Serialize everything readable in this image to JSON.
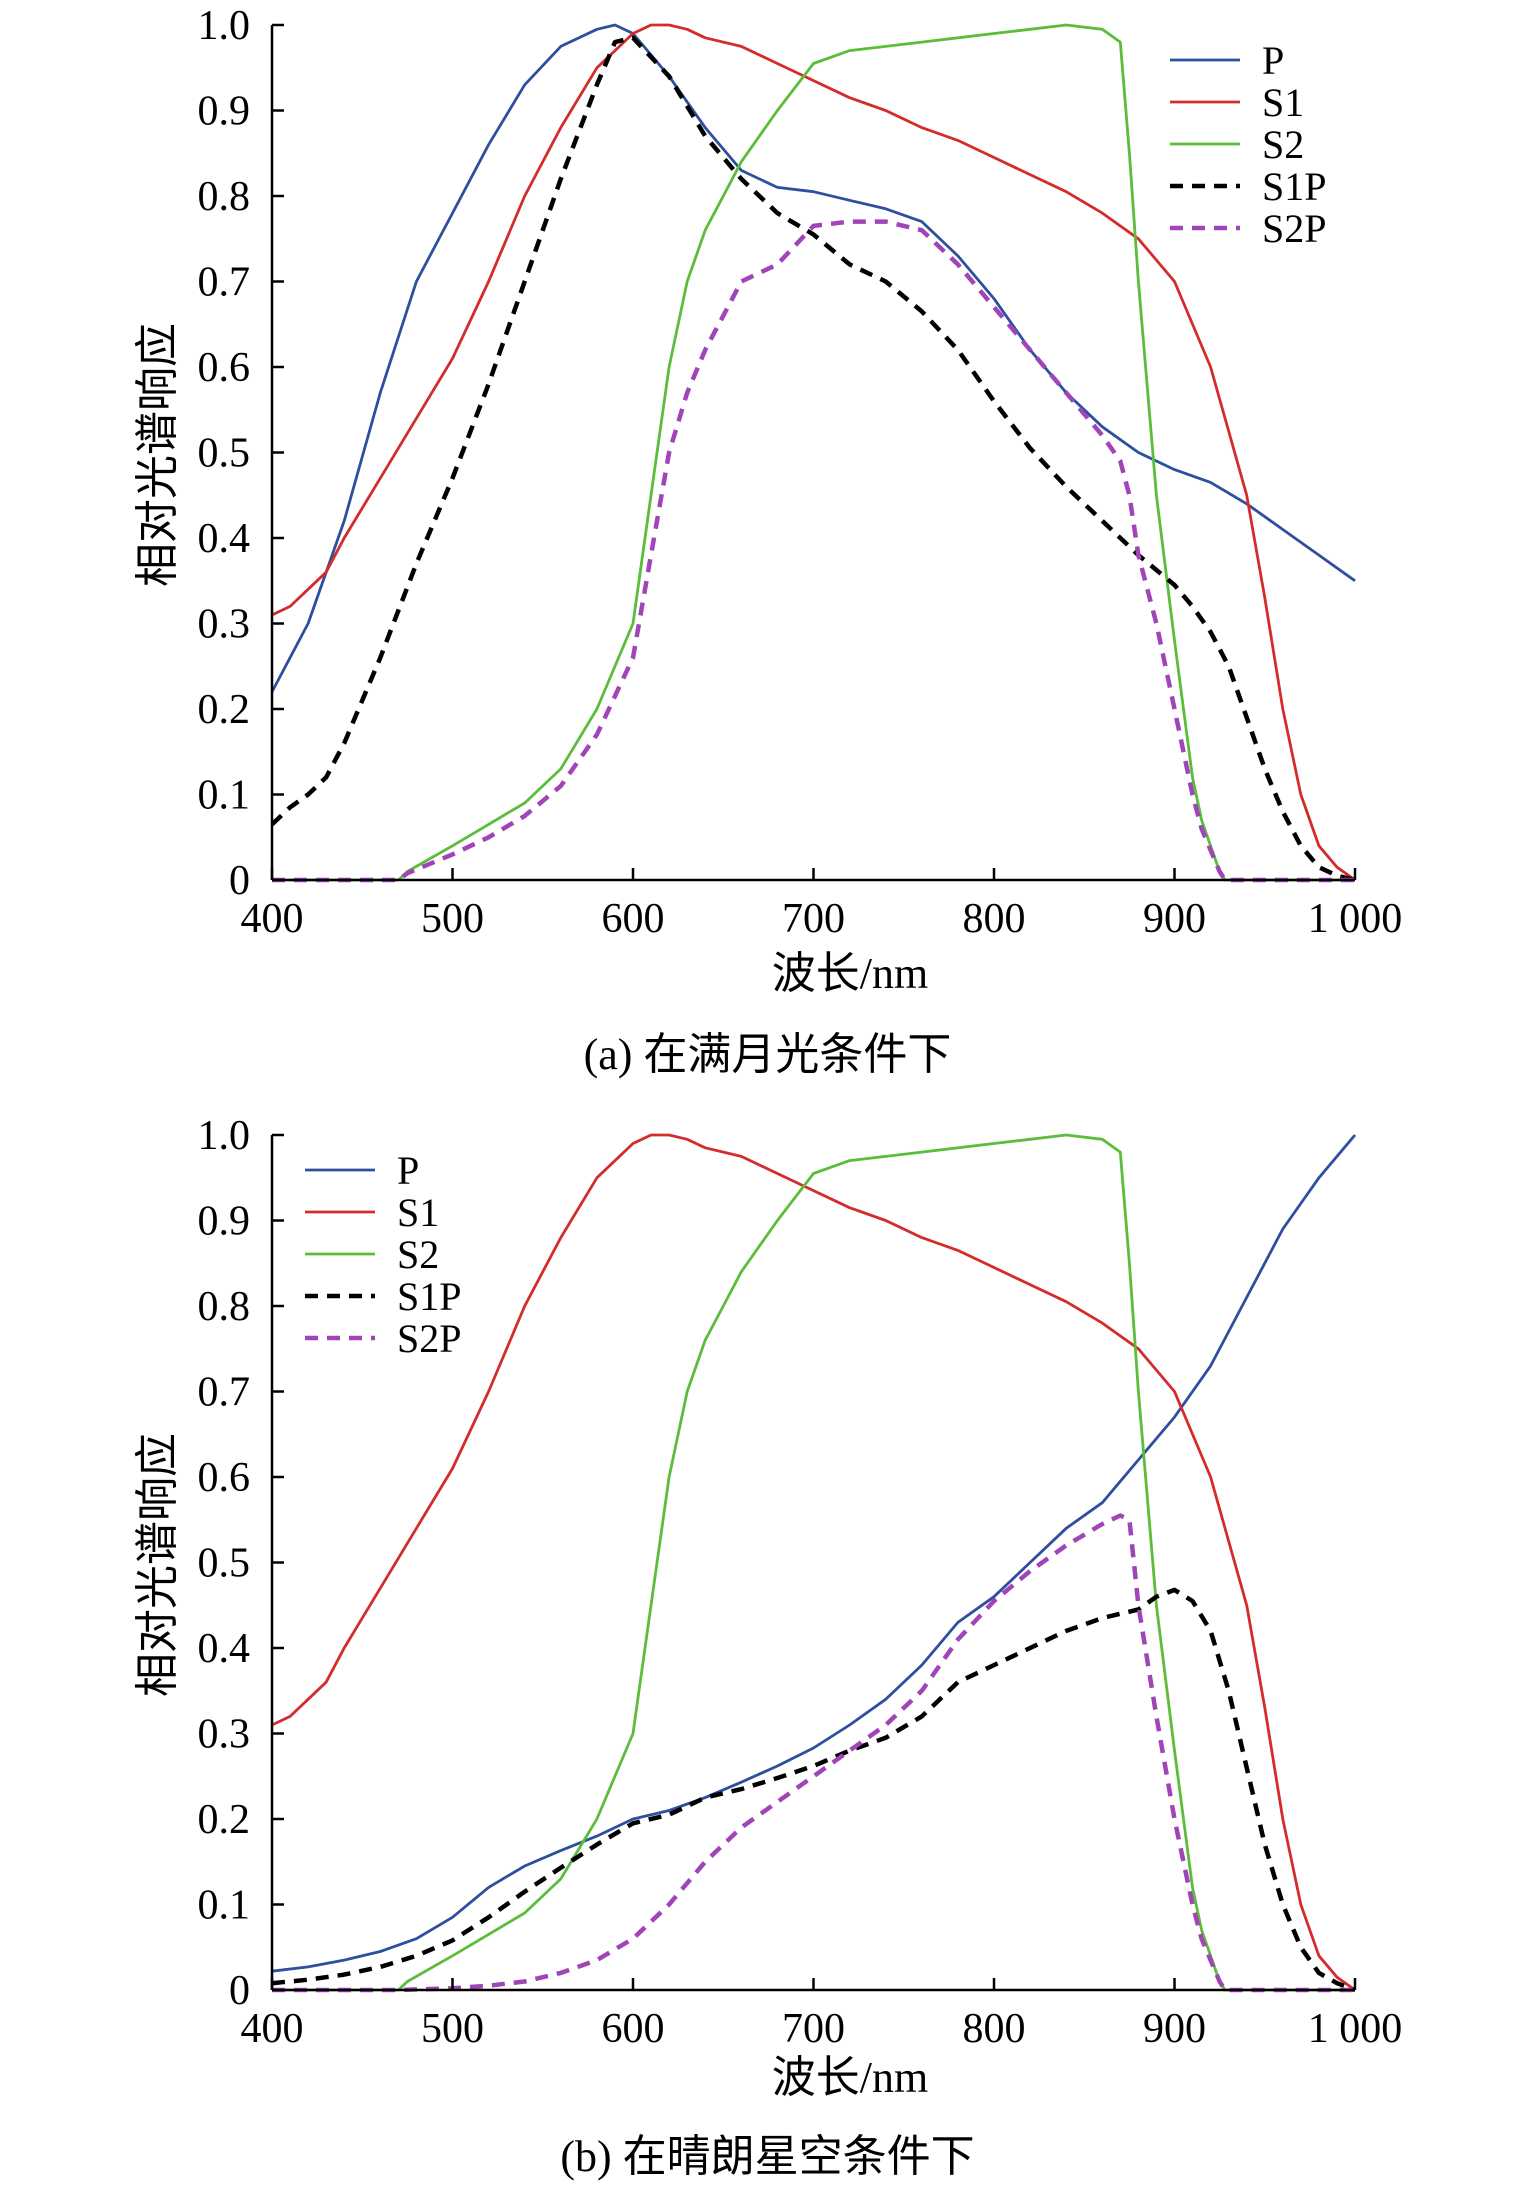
{
  "chart_data": [
    {
      "type": "line",
      "caption": "(a) 在满月光条件下",
      "xlabel": "波长/nm",
      "ylabel": "相对光谱响应",
      "xlim": [
        400,
        1000
      ],
      "ylim": [
        0,
        1.0
      ],
      "xticks": [
        400,
        500,
        600,
        700,
        800,
        900,
        1000
      ],
      "xtick_labels": [
        "400",
        "500",
        "600",
        "700",
        "800",
        "900",
        "1 000"
      ],
      "yticks": [
        0,
        0.1,
        0.2,
        0.3,
        0.4,
        0.5,
        0.6,
        0.7,
        0.8,
        0.9,
        1.0
      ],
      "ytick_labels": [
        "0",
        "0.1",
        "0.2",
        "0.3",
        "0.4",
        "0.5",
        "0.6",
        "0.7",
        "0.8",
        "0.9",
        "1.0"
      ],
      "grid": false,
      "legend": "top-right",
      "series": [
        {
          "name": "P",
          "color": "#2e4f9e",
          "dash": false,
          "x": [
            400,
            420,
            440,
            460,
            480,
            500,
            520,
            540,
            560,
            580,
            590,
            600,
            620,
            640,
            660,
            680,
            700,
            720,
            740,
            760,
            780,
            800,
            820,
            840,
            860,
            880,
            900,
            920,
            940,
            960,
            980,
            1000
          ],
          "y": [
            0.22,
            0.3,
            0.42,
            0.57,
            0.7,
            0.78,
            0.86,
            0.93,
            0.975,
            0.995,
            1.0,
            0.99,
            0.94,
            0.88,
            0.83,
            0.81,
            0.805,
            0.795,
            0.785,
            0.77,
            0.73,
            0.68,
            0.62,
            0.57,
            0.53,
            0.5,
            0.48,
            0.465,
            0.44,
            0.41,
            0.38,
            0.35
          ]
        },
        {
          "name": "S1",
          "color": "#d42b2b",
          "dash": false,
          "x": [
            400,
            410,
            420,
            430,
            440,
            460,
            480,
            500,
            520,
            540,
            560,
            580,
            600,
            610,
            620,
            630,
            640,
            660,
            680,
            700,
            720,
            740,
            760,
            780,
            800,
            820,
            840,
            860,
            880,
            900,
            920,
            940,
            950,
            960,
            970,
            980,
            990,
            1000
          ],
          "y": [
            0.31,
            0.32,
            0.34,
            0.36,
            0.4,
            0.47,
            0.54,
            0.61,
            0.7,
            0.8,
            0.88,
            0.95,
            0.99,
            1.0,
            1.0,
            0.995,
            0.985,
            0.975,
            0.955,
            0.935,
            0.915,
            0.9,
            0.88,
            0.865,
            0.845,
            0.825,
            0.805,
            0.78,
            0.75,
            0.7,
            0.6,
            0.45,
            0.33,
            0.2,
            0.1,
            0.04,
            0.015,
            0.0
          ]
        },
        {
          "name": "S2",
          "color": "#5cbc3b",
          "dash": false,
          "x": [
            400,
            470,
            475,
            500,
            520,
            540,
            560,
            580,
            600,
            610,
            620,
            630,
            640,
            650,
            660,
            680,
            700,
            720,
            740,
            760,
            780,
            800,
            820,
            840,
            860,
            870,
            875,
            880,
            890,
            900,
            905,
            910,
            915,
            920,
            925,
            928,
            930,
            1000
          ],
          "y": [
            0,
            0,
            0.01,
            0.04,
            0.065,
            0.09,
            0.13,
            0.2,
            0.3,
            0.45,
            0.6,
            0.7,
            0.76,
            0.8,
            0.84,
            0.9,
            0.955,
            0.97,
            0.975,
            0.98,
            0.985,
            0.99,
            0.995,
            1.0,
            0.995,
            0.98,
            0.85,
            0.7,
            0.45,
            0.28,
            0.2,
            0.12,
            0.07,
            0.04,
            0.01,
            0.0,
            0,
            0
          ]
        },
        {
          "name": "S1P",
          "color": "#000000",
          "dash": true,
          "x": [
            400,
            410,
            420,
            430,
            440,
            460,
            480,
            500,
            520,
            540,
            560,
            580,
            590,
            600,
            620,
            640,
            660,
            680,
            700,
            720,
            740,
            760,
            780,
            800,
            820,
            840,
            860,
            880,
            900,
            910,
            920,
            930,
            940,
            950,
            960,
            970,
            980,
            990,
            1000
          ],
          "y": [
            0.065,
            0.085,
            0.1,
            0.12,
            0.16,
            0.26,
            0.37,
            0.47,
            0.58,
            0.7,
            0.82,
            0.93,
            0.98,
            0.985,
            0.94,
            0.87,
            0.82,
            0.78,
            0.755,
            0.72,
            0.7,
            0.665,
            0.62,
            0.56,
            0.505,
            0.46,
            0.42,
            0.38,
            0.345,
            0.32,
            0.29,
            0.25,
            0.19,
            0.13,
            0.08,
            0.04,
            0.015,
            0.005,
            0.0
          ]
        },
        {
          "name": "S2P",
          "color": "#a044b8",
          "dash": true,
          "x": [
            400,
            470,
            475,
            500,
            520,
            540,
            560,
            580,
            600,
            610,
            620,
            630,
            640,
            650,
            660,
            680,
            700,
            720,
            740,
            760,
            780,
            800,
            820,
            840,
            860,
            870,
            875,
            880,
            890,
            900,
            905,
            910,
            915,
            920,
            925,
            928,
            930,
            1000
          ],
          "y": [
            0,
            0,
            0.008,
            0.03,
            0.05,
            0.075,
            0.11,
            0.17,
            0.26,
            0.38,
            0.5,
            0.57,
            0.62,
            0.66,
            0.7,
            0.72,
            0.765,
            0.77,
            0.77,
            0.76,
            0.72,
            0.67,
            0.62,
            0.57,
            0.52,
            0.49,
            0.45,
            0.38,
            0.3,
            0.2,
            0.15,
            0.1,
            0.06,
            0.035,
            0.01,
            0.0,
            0,
            0
          ]
        }
      ]
    },
    {
      "type": "line",
      "caption": "(b) 在晴朗星空条件下",
      "xlabel": "波长/nm",
      "ylabel": "相对光谱响应",
      "xlim": [
        400,
        1000
      ],
      "ylim": [
        0,
        1.0
      ],
      "xticks": [
        400,
        500,
        600,
        700,
        800,
        900,
        1000
      ],
      "xtick_labels": [
        "400",
        "500",
        "600",
        "700",
        "800",
        "900",
        "1 000"
      ],
      "yticks": [
        0,
        0.1,
        0.2,
        0.3,
        0.4,
        0.5,
        0.6,
        0.7,
        0.8,
        0.9,
        1.0
      ],
      "ytick_labels": [
        "0",
        "0.1",
        "0.2",
        "0.3",
        "0.4",
        "0.5",
        "0.6",
        "0.7",
        "0.8",
        "0.9",
        "1.0"
      ],
      "grid": false,
      "legend": "top-left",
      "series": [
        {
          "name": "P",
          "color": "#2e4f9e",
          "dash": false,
          "x": [
            400,
            420,
            440,
            460,
            480,
            500,
            520,
            540,
            560,
            580,
            600,
            620,
            640,
            660,
            680,
            700,
            720,
            740,
            760,
            780,
            800,
            820,
            840,
            860,
            880,
            900,
            920,
            940,
            960,
            980,
            1000
          ],
          "y": [
            0.022,
            0.027,
            0.035,
            0.045,
            0.06,
            0.085,
            0.12,
            0.145,
            0.163,
            0.18,
            0.2,
            0.21,
            0.225,
            0.243,
            0.262,
            0.283,
            0.31,
            0.34,
            0.38,
            0.43,
            0.46,
            0.5,
            0.54,
            0.57,
            0.62,
            0.67,
            0.73,
            0.81,
            0.89,
            0.95,
            1.0
          ]
        },
        {
          "name": "S1",
          "color": "#d42b2b",
          "dash": false,
          "x": [
            400,
            410,
            420,
            430,
            440,
            460,
            480,
            500,
            520,
            540,
            560,
            580,
            600,
            610,
            620,
            630,
            640,
            660,
            680,
            700,
            720,
            740,
            760,
            780,
            800,
            820,
            840,
            860,
            880,
            900,
            920,
            940,
            950,
            960,
            970,
            980,
            990,
            1000
          ],
          "y": [
            0.31,
            0.32,
            0.34,
            0.36,
            0.4,
            0.47,
            0.54,
            0.61,
            0.7,
            0.8,
            0.88,
            0.95,
            0.99,
            1.0,
            1.0,
            0.995,
            0.985,
            0.975,
            0.955,
            0.935,
            0.915,
            0.9,
            0.88,
            0.865,
            0.845,
            0.825,
            0.805,
            0.78,
            0.75,
            0.7,
            0.6,
            0.45,
            0.33,
            0.2,
            0.1,
            0.04,
            0.015,
            0.0
          ]
        },
        {
          "name": "S2",
          "color": "#5cbc3b",
          "dash": false,
          "x": [
            400,
            470,
            475,
            500,
            520,
            540,
            560,
            580,
            600,
            610,
            620,
            630,
            640,
            650,
            660,
            680,
            700,
            720,
            740,
            760,
            780,
            800,
            820,
            840,
            860,
            870,
            875,
            880,
            890,
            900,
            905,
            910,
            915,
            920,
            925,
            928,
            930,
            1000
          ],
          "y": [
            0,
            0,
            0.01,
            0.04,
            0.065,
            0.09,
            0.13,
            0.2,
            0.3,
            0.45,
            0.6,
            0.7,
            0.76,
            0.8,
            0.84,
            0.9,
            0.955,
            0.97,
            0.975,
            0.98,
            0.985,
            0.99,
            0.995,
            1.0,
            0.995,
            0.98,
            0.85,
            0.7,
            0.45,
            0.28,
            0.2,
            0.12,
            0.07,
            0.04,
            0.01,
            0.0,
            0,
            0
          ]
        },
        {
          "name": "S1P",
          "color": "#000000",
          "dash": true,
          "x": [
            400,
            420,
            440,
            460,
            480,
            500,
            520,
            540,
            560,
            580,
            600,
            620,
            640,
            660,
            680,
            700,
            720,
            740,
            760,
            780,
            800,
            820,
            840,
            860,
            880,
            890,
            900,
            910,
            920,
            930,
            940,
            950,
            960,
            970,
            980,
            990,
            1000
          ],
          "y": [
            0.008,
            0.012,
            0.018,
            0.027,
            0.04,
            0.058,
            0.085,
            0.115,
            0.143,
            0.17,
            0.195,
            0.205,
            0.225,
            0.235,
            0.248,
            0.262,
            0.28,
            0.295,
            0.32,
            0.36,
            0.38,
            0.4,
            0.42,
            0.435,
            0.445,
            0.46,
            0.468,
            0.455,
            0.42,
            0.35,
            0.26,
            0.17,
            0.1,
            0.05,
            0.02,
            0.008,
            0.0
          ]
        },
        {
          "name": "S2P",
          "color": "#a044b8",
          "dash": true,
          "x": [
            400,
            470,
            500,
            520,
            540,
            560,
            580,
            600,
            620,
            640,
            660,
            680,
            700,
            720,
            740,
            760,
            780,
            800,
            820,
            840,
            860,
            870,
            875,
            880,
            890,
            900,
            905,
            910,
            915,
            920,
            925,
            928,
            930,
            1000
          ],
          "y": [
            0,
            0,
            0.002,
            0.005,
            0.01,
            0.02,
            0.035,
            0.06,
            0.1,
            0.15,
            0.19,
            0.22,
            0.25,
            0.28,
            0.31,
            0.35,
            0.41,
            0.455,
            0.49,
            0.52,
            0.545,
            0.555,
            0.55,
            0.45,
            0.32,
            0.2,
            0.15,
            0.1,
            0.06,
            0.035,
            0.01,
            0.0,
            0,
            0
          ]
        }
      ]
    }
  ]
}
